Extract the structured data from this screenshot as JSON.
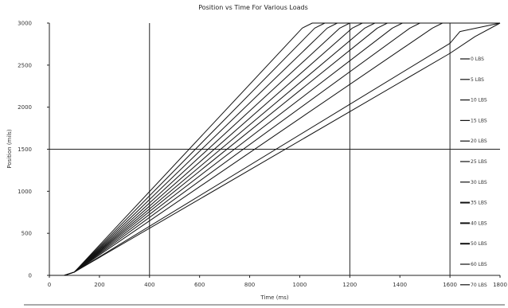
{
  "chart_data": {
    "type": "line",
    "title": "Position vs Time For Various Loads",
    "xlabel": "Time (ms)",
    "ylabel": "Position (mils)",
    "xlim": [
      0,
      1800
    ],
    "ylim": [
      0,
      3000
    ],
    "xticks": [
      0,
      200,
      400,
      600,
      800,
      1000,
      1200,
      1400,
      1600,
      1800
    ],
    "yticks": [
      0,
      500,
      1000,
      1500,
      2000,
      2500,
      3000
    ],
    "grid": {
      "vertical_x": [
        400,
        1200,
        1600
      ],
      "horizontal_y": [
        1500
      ]
    },
    "legend_position": "right",
    "series": [
      {
        "name": "0 LBS",
        "x": [
          0,
          60,
          100,
          1010,
          1050,
          1800
        ],
        "y": [
          0,
          0,
          40,
          2940,
          3000,
          3000
        ]
      },
      {
        "name": "5 LBS",
        "x": [
          0,
          60,
          100,
          1060,
          1100,
          1800
        ],
        "y": [
          0,
          0,
          40,
          2940,
          3000,
          3000
        ]
      },
      {
        "name": "10 LBS",
        "x": [
          0,
          60,
          100,
          1110,
          1150,
          1800
        ],
        "y": [
          0,
          0,
          40,
          2940,
          3000,
          3000
        ]
      },
      {
        "name": "15 LBS",
        "x": [
          0,
          60,
          100,
          1160,
          1200,
          1800
        ],
        "y": [
          0,
          0,
          40,
          2940,
          3000,
          3000
        ]
      },
      {
        "name": "20 LBS",
        "x": [
          0,
          60,
          100,
          1210,
          1250,
          1800
        ],
        "y": [
          0,
          0,
          40,
          2940,
          3000,
          3000
        ]
      },
      {
        "name": "25 LBS",
        "x": [
          0,
          60,
          100,
          1260,
          1300,
          1800
        ],
        "y": [
          0,
          0,
          40,
          2940,
          3000,
          3000
        ]
      },
      {
        "name": "30 LBS",
        "x": [
          0,
          60,
          100,
          1310,
          1350,
          1800
        ],
        "y": [
          0,
          0,
          40,
          2940,
          3000,
          3000
        ]
      },
      {
        "name": "35 LBS",
        "x": [
          0,
          60,
          100,
          1370,
          1410,
          1800
        ],
        "y": [
          0,
          0,
          40,
          2940,
          3000,
          3000
        ]
      },
      {
        "name": "40 LBS",
        "x": [
          0,
          60,
          100,
          1440,
          1480,
          1800
        ],
        "y": [
          0,
          0,
          40,
          2940,
          3000,
          3000
        ]
      },
      {
        "name": "50 LBS",
        "x": [
          0,
          60,
          100,
          1530,
          1570,
          1800
        ],
        "y": [
          0,
          0,
          40,
          2940,
          3000,
          3000
        ]
      },
      {
        "name": "60 LBS",
        "x": [
          0,
          60,
          100,
          1600,
          1640,
          1800
        ],
        "y": [
          0,
          0,
          40,
          2760,
          2900,
          3000
        ]
      },
      {
        "name": "70 LBS",
        "x": [
          0,
          60,
          100,
          1600,
          1700,
          1800
        ],
        "y": [
          0,
          0,
          40,
          2640,
          2840,
          3000
        ]
      }
    ]
  }
}
